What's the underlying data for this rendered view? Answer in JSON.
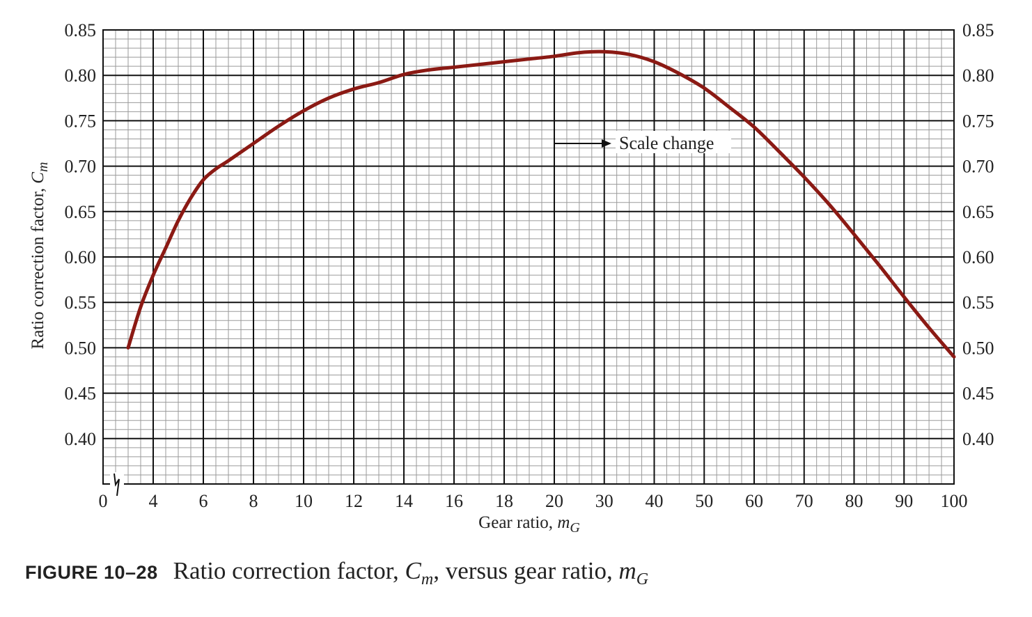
{
  "chart_data": {
    "type": "line",
    "x_tick_labels": [
      "0",
      "4",
      "6",
      "8",
      "10",
      "12",
      "14",
      "16",
      "18",
      "20",
      "30",
      "40",
      "50",
      "60",
      "70",
      "80",
      "90",
      "100"
    ],
    "y_tick_labels": [
      "0.40",
      "0.45",
      "0.50",
      "0.55",
      "0.60",
      "0.65",
      "0.70",
      "0.75",
      "0.80",
      "0.85"
    ],
    "y_ticks": [
      0.4,
      0.45,
      0.5,
      0.55,
      0.6,
      0.65,
      0.7,
      0.75,
      0.8,
      0.85
    ],
    "ylim": [
      0.35,
      0.85
    ],
    "x_scale_note": "linear from 2 to 20, then linear from 20 to 100 with a scale change at 20",
    "ylabel_text": "Ratio correction factor, ",
    "ylabel_symbol": "C",
    "ylabel_sub": "m",
    "xlabel_text": "Gear ratio, ",
    "xlabel_symbol": "m",
    "xlabel_sub": "G",
    "annotation": "Scale change",
    "grid": true,
    "series": [
      {
        "color": "#8b1a14",
        "x": [
          3,
          3.5,
          4,
          4.5,
          5,
          5.5,
          6,
          6.5,
          7,
          8,
          9,
          10,
          11,
          12,
          13,
          14,
          15,
          16,
          17,
          18,
          19,
          20,
          25,
          30,
          35,
          40,
          45,
          50,
          55,
          60,
          65,
          70,
          75,
          80,
          85,
          90,
          95,
          100
        ],
        "y": [
          0.5,
          0.545,
          0.58,
          0.61,
          0.64,
          0.665,
          0.685,
          0.697,
          0.706,
          0.725,
          0.744,
          0.761,
          0.775,
          0.785,
          0.792,
          0.801,
          0.806,
          0.809,
          0.812,
          0.815,
          0.818,
          0.821,
          0.825,
          0.826,
          0.823,
          0.815,
          0.802,
          0.786,
          0.765,
          0.743,
          0.716,
          0.688,
          0.658,
          0.625,
          0.591,
          0.556,
          0.522,
          0.49
        ]
      }
    ]
  },
  "caption": {
    "figure_label": "FIGURE 10–28",
    "text_1": "Ratio correction factor, ",
    "symbol_1": "C",
    "sub_1": "m",
    "text_2": ", versus gear ratio, ",
    "symbol_2": "m",
    "sub_2": "G"
  }
}
